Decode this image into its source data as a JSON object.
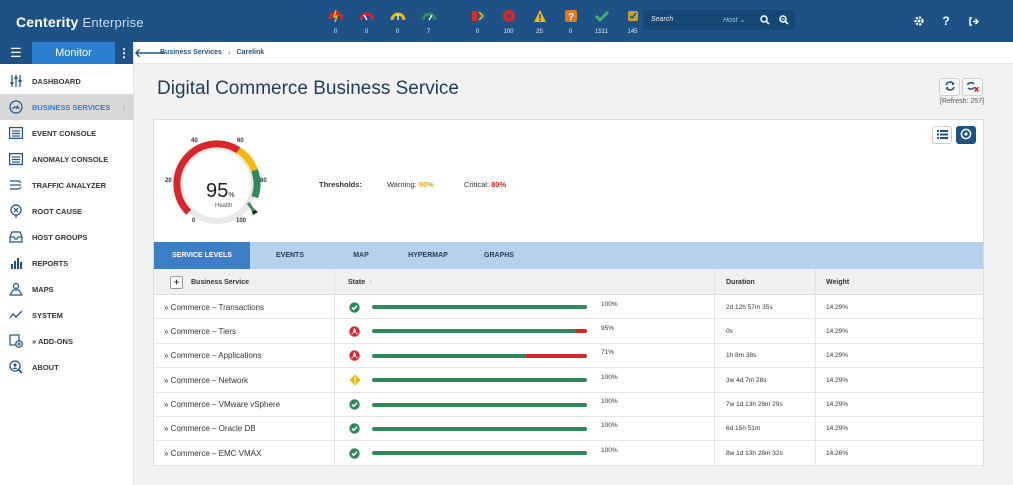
{
  "app": {
    "brand": "Centerity",
    "edition": "Enterprise"
  },
  "status_counts": [
    {
      "icon": "host-down-icon",
      "count": "0"
    },
    {
      "icon": "host-critical-gauge-icon",
      "count": "0"
    },
    {
      "icon": "host-warning-gauge-icon",
      "count": "0"
    },
    {
      "icon": "host-ok-gauge-icon",
      "count": "7"
    },
    {
      "icon": "service-down-icon",
      "count": "0"
    },
    {
      "icon": "service-critical-icon",
      "count": "100"
    },
    {
      "icon": "service-warning-icon",
      "count": "25"
    },
    {
      "icon": "service-unknown-icon",
      "count": "0"
    },
    {
      "icon": "service-ok-icon",
      "count": "1511"
    },
    {
      "icon": "service-acknowledged-icon",
      "count": "145"
    }
  ],
  "search": {
    "label": "Search",
    "scope": "Host"
  },
  "sidebar": {
    "section": "Monitor",
    "items": [
      {
        "label": "DASHBOARD",
        "icon": "sliders-icon"
      },
      {
        "label": "BUSINESS SERVICES",
        "icon": "gauge-icon",
        "active": true
      },
      {
        "label": "EVENT CONSOLE",
        "icon": "list-icon"
      },
      {
        "label": "ANOMALY CONSOLE",
        "icon": "list-icon"
      },
      {
        "label": "TRAFFIC ANALYZER",
        "icon": "traffic-icon"
      },
      {
        "label": "ROOT CAUSE",
        "icon": "root-cause-icon"
      },
      {
        "label": "HOST GROUPS",
        "icon": "inbox-icon"
      },
      {
        "label": "REPORTS",
        "icon": "bar-chart-icon"
      },
      {
        "label": "MAPS",
        "icon": "map-icon"
      },
      {
        "label": "SYSTEM",
        "icon": "pulse-icon"
      },
      {
        "label": "» ADD-ONS",
        "icon": "addons-icon"
      },
      {
        "label": "ABOUT",
        "icon": "search-user-icon"
      }
    ]
  },
  "breadcrumb": [
    "Business Services",
    "Carelink"
  ],
  "page": {
    "title": "Digital Commerce Business Service",
    "refresh": "[Refresh: 257]"
  },
  "gauge": {
    "value": "95",
    "unit": "%",
    "label": "Health",
    "ticks": [
      "0",
      "20",
      "40",
      "60",
      "80",
      "100"
    ]
  },
  "thresholds": {
    "label": "Thresholds:",
    "warning_label": "Warning:",
    "warning_value": "90%",
    "critical_label": "Critical:",
    "critical_value": "80%"
  },
  "tabs": [
    "SERVICE LEVELS",
    "EVENTS",
    "MAP",
    "HYPERMAP",
    "GRAPHS"
  ],
  "table": {
    "headers": {
      "name": "Business Service",
      "state": "State",
      "duration": "Duration",
      "weight": "Weight"
    },
    "rows": [
      {
        "name": "» Commerce – Transactions",
        "state": "ok",
        "percent": "100%",
        "level": 1.0,
        "duration": "2d 12h 57m 35s",
        "weight": "14.29%"
      },
      {
        "name": "» Commerce – Tiers",
        "state": "critical",
        "percent": "95%",
        "level": 0.95,
        "duration": "0s",
        "weight": "14.29%"
      },
      {
        "name": "» Commerce – Applications",
        "state": "critical",
        "percent": "71%",
        "level": 0.71,
        "duration": "1h 8m 38s",
        "weight": "14.29%"
      },
      {
        "name": "» Commerce – Network",
        "state": "warning",
        "percent": "100%",
        "level": 1.0,
        "duration": "3w 4d 7m 28s",
        "weight": "14.29%"
      },
      {
        "name": "» Commerce – VMware vSphere",
        "state": "ok",
        "percent": "100%",
        "level": 1.0,
        "duration": "7w 1d 13h 28m 29s",
        "weight": "14.29%"
      },
      {
        "name": "» Commerce – Oracle DB",
        "state": "ok",
        "percent": "100%",
        "level": 1.0,
        "duration": "6d 15h 51m",
        "weight": "14.29%"
      },
      {
        "name": "» Commerce – EMC VMAX",
        "state": "ok",
        "percent": "100%",
        "level": 1.0,
        "duration": "8w 1d 13h 28m 32s",
        "weight": "14.26%"
      }
    ]
  },
  "colors": {
    "ok": "#2e8b57",
    "critical": "#d9262b",
    "warning": "#f5b800",
    "brand": "#1e5287"
  }
}
